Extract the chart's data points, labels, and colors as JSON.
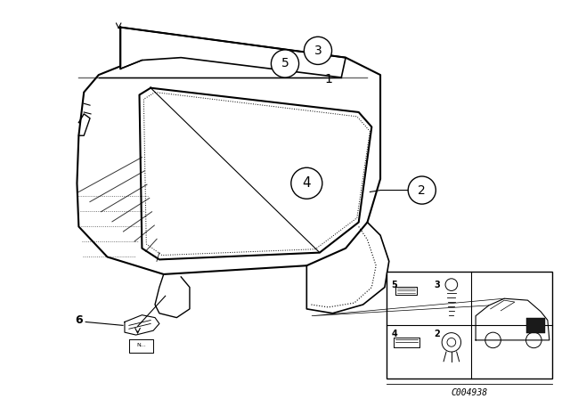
{
  "background_color": "#ffffff",
  "fig_width": 6.4,
  "fig_height": 4.48,
  "dpi": 100,
  "catalog_number": "C004938",
  "line_color": "#000000",
  "text_color": "#000000"
}
